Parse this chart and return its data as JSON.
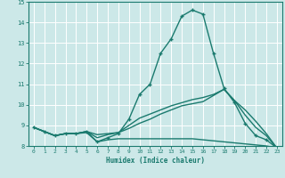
{
  "background_color": "#cce8e8",
  "grid_color": "#ffffff",
  "line_color": "#1a7a6e",
  "xlabel": "Humidex (Indice chaleur)",
  "xlim": [
    -0.5,
    23.5
  ],
  "ylim": [
    8,
    15
  ],
  "yticks": [
    8,
    9,
    10,
    11,
    12,
    13,
    14,
    15
  ],
  "xticks": [
    0,
    1,
    2,
    3,
    4,
    5,
    6,
    7,
    8,
    9,
    10,
    11,
    12,
    13,
    14,
    15,
    16,
    17,
    18,
    19,
    20,
    21,
    22,
    23
  ],
  "series": [
    {
      "x": [
        0,
        1,
        2,
        3,
        4,
        5,
        6,
        7,
        8,
        9,
        10,
        11,
        12,
        13,
        14,
        15,
        16,
        17,
        18,
        19,
        20,
        21,
        22,
        23
      ],
      "y": [
        8.9,
        8.7,
        8.5,
        8.6,
        8.6,
        8.7,
        8.2,
        8.4,
        8.6,
        9.3,
        10.5,
        11.0,
        12.5,
        13.2,
        14.3,
        14.6,
        14.4,
        12.5,
        10.8,
        10.1,
        9.1,
        8.5,
        8.3,
        7.9
      ],
      "marker": "+",
      "markersize": 3.5,
      "linewidth": 1.0
    },
    {
      "x": [
        0,
        1,
        2,
        3,
        4,
        5,
        6,
        7,
        8,
        9,
        10,
        11,
        12,
        13,
        14,
        15,
        16,
        17,
        18,
        19,
        20,
        21,
        22,
        23
      ],
      "y": [
        8.9,
        8.7,
        8.5,
        8.6,
        8.6,
        8.7,
        8.55,
        8.6,
        8.65,
        9.0,
        9.35,
        9.55,
        9.75,
        9.95,
        10.1,
        10.25,
        10.35,
        10.5,
        10.75,
        10.2,
        9.5,
        8.9,
        8.5,
        7.9
      ],
      "marker": null,
      "markersize": 0,
      "linewidth": 1.0
    },
    {
      "x": [
        0,
        1,
        2,
        3,
        4,
        5,
        6,
        7,
        8,
        9,
        10,
        11,
        12,
        13,
        14,
        15,
        16,
        17,
        18,
        19,
        20,
        21,
        22,
        23
      ],
      "y": [
        8.9,
        8.7,
        8.5,
        8.6,
        8.6,
        8.65,
        8.2,
        8.3,
        8.35,
        8.35,
        8.35,
        8.35,
        8.35,
        8.35,
        8.35,
        8.35,
        8.3,
        8.25,
        8.2,
        8.15,
        8.1,
        8.05,
        8.0,
        7.9
      ],
      "marker": null,
      "markersize": 0,
      "linewidth": 1.0
    },
    {
      "x": [
        0,
        1,
        2,
        3,
        4,
        5,
        6,
        7,
        8,
        9,
        10,
        11,
        12,
        13,
        14,
        15,
        16,
        17,
        18,
        19,
        20,
        21,
        22,
        23
      ],
      "y": [
        8.9,
        8.7,
        8.5,
        8.6,
        8.6,
        8.7,
        8.4,
        8.55,
        8.65,
        8.85,
        9.1,
        9.3,
        9.55,
        9.75,
        9.95,
        10.05,
        10.15,
        10.45,
        10.75,
        10.2,
        9.75,
        9.2,
        8.6,
        7.9
      ],
      "marker": null,
      "markersize": 0,
      "linewidth": 1.0
    }
  ]
}
